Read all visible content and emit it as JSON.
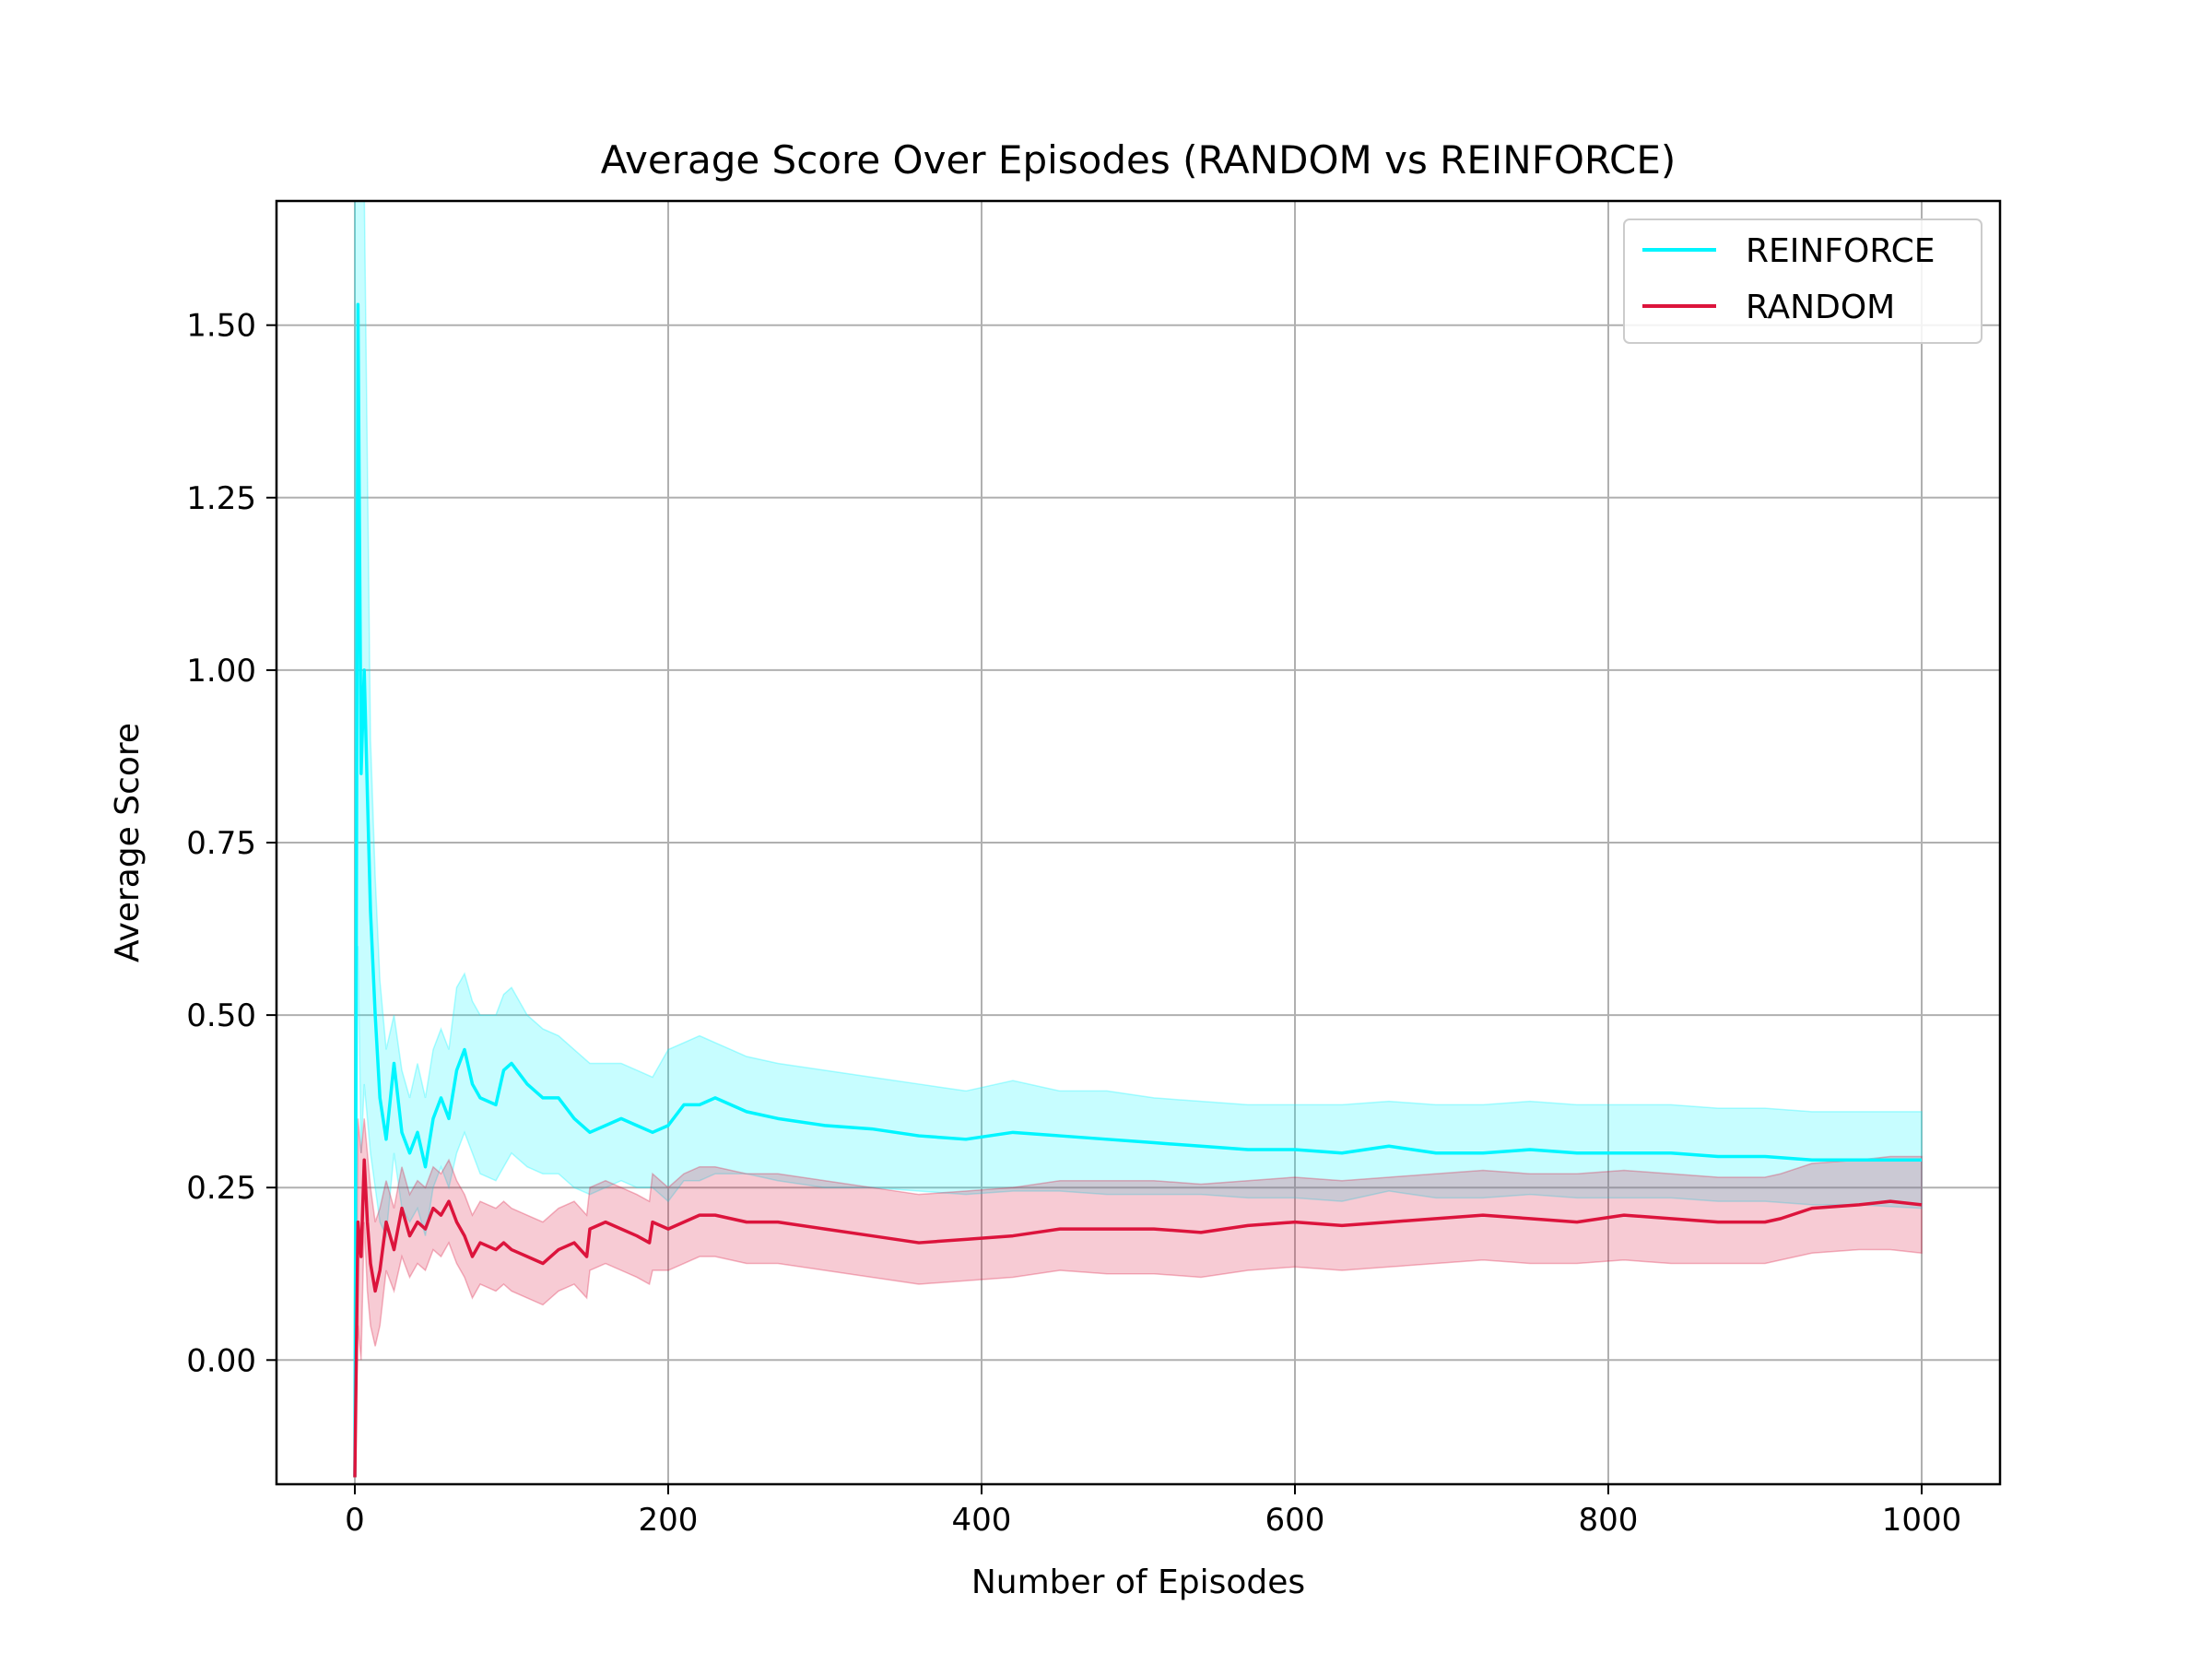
{
  "chart_data": {
    "type": "line",
    "title": "Average Score Over Episodes (RANDOM vs REINFORCE)",
    "xlabel": "Number of Episodes",
    "ylabel": "Average Score",
    "xlim": [
      -50,
      1050
    ],
    "ylim": [
      -0.18,
      1.68
    ],
    "grid": true,
    "legend_position": "top-right",
    "xticks": [
      0,
      200,
      400,
      600,
      800,
      1000
    ],
    "xtick_labels": [
      "0",
      "200",
      "400",
      "600",
      "800",
      "1000"
    ],
    "yticks": [
      0.0,
      0.25,
      0.5,
      0.75,
      1.0,
      1.25,
      1.5
    ],
    "ytick_labels": [
      "0.00",
      "0.25",
      "0.50",
      "0.75",
      "1.00",
      "1.25",
      "1.50"
    ],
    "series": [
      {
        "name": "REINFORCE",
        "color": "#00f5ff",
        "x": [
          0,
          2,
          4,
          6,
          8,
          10,
          13,
          16,
          20,
          25,
          30,
          35,
          40,
          45,
          50,
          55,
          60,
          65,
          70,
          75,
          80,
          90,
          95,
          100,
          110,
          120,
          130,
          140,
          150,
          160,
          170,
          180,
          190,
          200,
          210,
          220,
          230,
          250,
          270,
          300,
          330,
          360,
          390,
          420,
          450,
          480,
          510,
          540,
          570,
          600,
          630,
          660,
          690,
          720,
          750,
          780,
          810,
          840,
          870,
          900,
          930,
          960,
          1000
        ],
        "values": [
          -0.17,
          1.53,
          0.85,
          1.0,
          0.82,
          0.65,
          0.5,
          0.38,
          0.32,
          0.43,
          0.33,
          0.3,
          0.33,
          0.28,
          0.35,
          0.38,
          0.35,
          0.42,
          0.45,
          0.4,
          0.38,
          0.37,
          0.42,
          0.43,
          0.4,
          0.38,
          0.38,
          0.35,
          0.33,
          0.34,
          0.35,
          0.34,
          0.33,
          0.34,
          0.37,
          0.37,
          0.38,
          0.36,
          0.35,
          0.34,
          0.335,
          0.325,
          0.32,
          0.33,
          0.325,
          0.32,
          0.315,
          0.31,
          0.305,
          0.305,
          0.3,
          0.31,
          0.3,
          0.3,
          0.305,
          0.3,
          0.3,
          0.3,
          0.295,
          0.295,
          0.29,
          0.29,
          0.29
        ],
        "upper": [
          1.7,
          1.7,
          1.7,
          1.7,
          1.3,
          0.9,
          0.7,
          0.55,
          0.45,
          0.5,
          0.42,
          0.38,
          0.43,
          0.38,
          0.45,
          0.48,
          0.45,
          0.54,
          0.56,
          0.52,
          0.5,
          0.5,
          0.53,
          0.54,
          0.5,
          0.48,
          0.47,
          0.45,
          0.43,
          0.43,
          0.43,
          0.42,
          0.41,
          0.45,
          0.46,
          0.47,
          0.46,
          0.44,
          0.43,
          0.42,
          0.41,
          0.4,
          0.39,
          0.405,
          0.39,
          0.39,
          0.38,
          0.375,
          0.37,
          0.37,
          0.37,
          0.375,
          0.37,
          0.37,
          0.375,
          0.37,
          0.37,
          0.37,
          0.365,
          0.365,
          0.36,
          0.36,
          0.36
        ],
        "lower": [
          -0.17,
          0.6,
          0.3,
          0.4,
          0.35,
          0.3,
          0.25,
          0.2,
          0.18,
          0.3,
          0.22,
          0.2,
          0.22,
          0.18,
          0.25,
          0.28,
          0.25,
          0.3,
          0.33,
          0.3,
          0.27,
          0.26,
          0.28,
          0.3,
          0.28,
          0.27,
          0.27,
          0.25,
          0.24,
          0.25,
          0.26,
          0.25,
          0.25,
          0.23,
          0.26,
          0.26,
          0.27,
          0.27,
          0.26,
          0.25,
          0.25,
          0.245,
          0.24,
          0.245,
          0.245,
          0.24,
          0.24,
          0.24,
          0.235,
          0.235,
          0.23,
          0.245,
          0.235,
          0.235,
          0.24,
          0.235,
          0.235,
          0.235,
          0.23,
          0.23,
          0.225,
          0.225,
          0.22
        ]
      },
      {
        "name": "RANDOM",
        "color": "#dc143c",
        "x": [
          0,
          2,
          4,
          6,
          8,
          10,
          13,
          16,
          20,
          25,
          30,
          35,
          40,
          45,
          50,
          55,
          60,
          65,
          70,
          75,
          80,
          90,
          95,
          100,
          110,
          120,
          130,
          140,
          148,
          150,
          160,
          170,
          180,
          188,
          190,
          200,
          210,
          220,
          230,
          250,
          270,
          300,
          330,
          360,
          390,
          420,
          450,
          480,
          510,
          540,
          570,
          600,
          630,
          660,
          690,
          720,
          750,
          780,
          810,
          840,
          870,
          900,
          910,
          930,
          960,
          980,
          1000
        ],
        "values": [
          -0.17,
          0.2,
          0.15,
          0.29,
          0.2,
          0.14,
          0.1,
          0.13,
          0.2,
          0.16,
          0.22,
          0.18,
          0.2,
          0.19,
          0.22,
          0.21,
          0.23,
          0.2,
          0.18,
          0.15,
          0.17,
          0.16,
          0.17,
          0.16,
          0.15,
          0.14,
          0.16,
          0.17,
          0.15,
          0.19,
          0.2,
          0.19,
          0.18,
          0.17,
          0.2,
          0.19,
          0.2,
          0.21,
          0.21,
          0.2,
          0.2,
          0.19,
          0.18,
          0.17,
          0.175,
          0.18,
          0.19,
          0.19,
          0.19,
          0.185,
          0.195,
          0.2,
          0.195,
          0.2,
          0.205,
          0.21,
          0.205,
          0.2,
          0.21,
          0.205,
          0.2,
          0.2,
          0.205,
          0.22,
          0.225,
          0.23,
          0.225
        ],
        "upper": [
          -0.17,
          0.35,
          0.3,
          0.35,
          0.3,
          0.25,
          0.2,
          0.22,
          0.26,
          0.22,
          0.28,
          0.24,
          0.26,
          0.25,
          0.28,
          0.27,
          0.29,
          0.26,
          0.24,
          0.21,
          0.23,
          0.22,
          0.23,
          0.22,
          0.21,
          0.2,
          0.22,
          0.23,
          0.21,
          0.25,
          0.26,
          0.25,
          0.24,
          0.23,
          0.27,
          0.25,
          0.27,
          0.28,
          0.28,
          0.27,
          0.27,
          0.26,
          0.25,
          0.24,
          0.245,
          0.25,
          0.26,
          0.26,
          0.26,
          0.255,
          0.26,
          0.265,
          0.26,
          0.265,
          0.27,
          0.275,
          0.27,
          0.27,
          0.275,
          0.27,
          0.265,
          0.265,
          0.27,
          0.285,
          0.29,
          0.295,
          0.295
        ],
        "lower": [
          -0.17,
          0.05,
          0.0,
          0.2,
          0.1,
          0.05,
          0.02,
          0.05,
          0.13,
          0.1,
          0.15,
          0.12,
          0.14,
          0.13,
          0.16,
          0.15,
          0.17,
          0.14,
          0.12,
          0.09,
          0.11,
          0.1,
          0.11,
          0.1,
          0.09,
          0.08,
          0.1,
          0.11,
          0.09,
          0.13,
          0.14,
          0.13,
          0.12,
          0.11,
          0.13,
          0.13,
          0.14,
          0.15,
          0.15,
          0.14,
          0.14,
          0.13,
          0.12,
          0.11,
          0.115,
          0.12,
          0.13,
          0.125,
          0.125,
          0.12,
          0.13,
          0.135,
          0.13,
          0.135,
          0.14,
          0.145,
          0.14,
          0.14,
          0.145,
          0.14,
          0.14,
          0.14,
          0.145,
          0.155,
          0.16,
          0.16,
          0.155
        ]
      }
    ]
  }
}
